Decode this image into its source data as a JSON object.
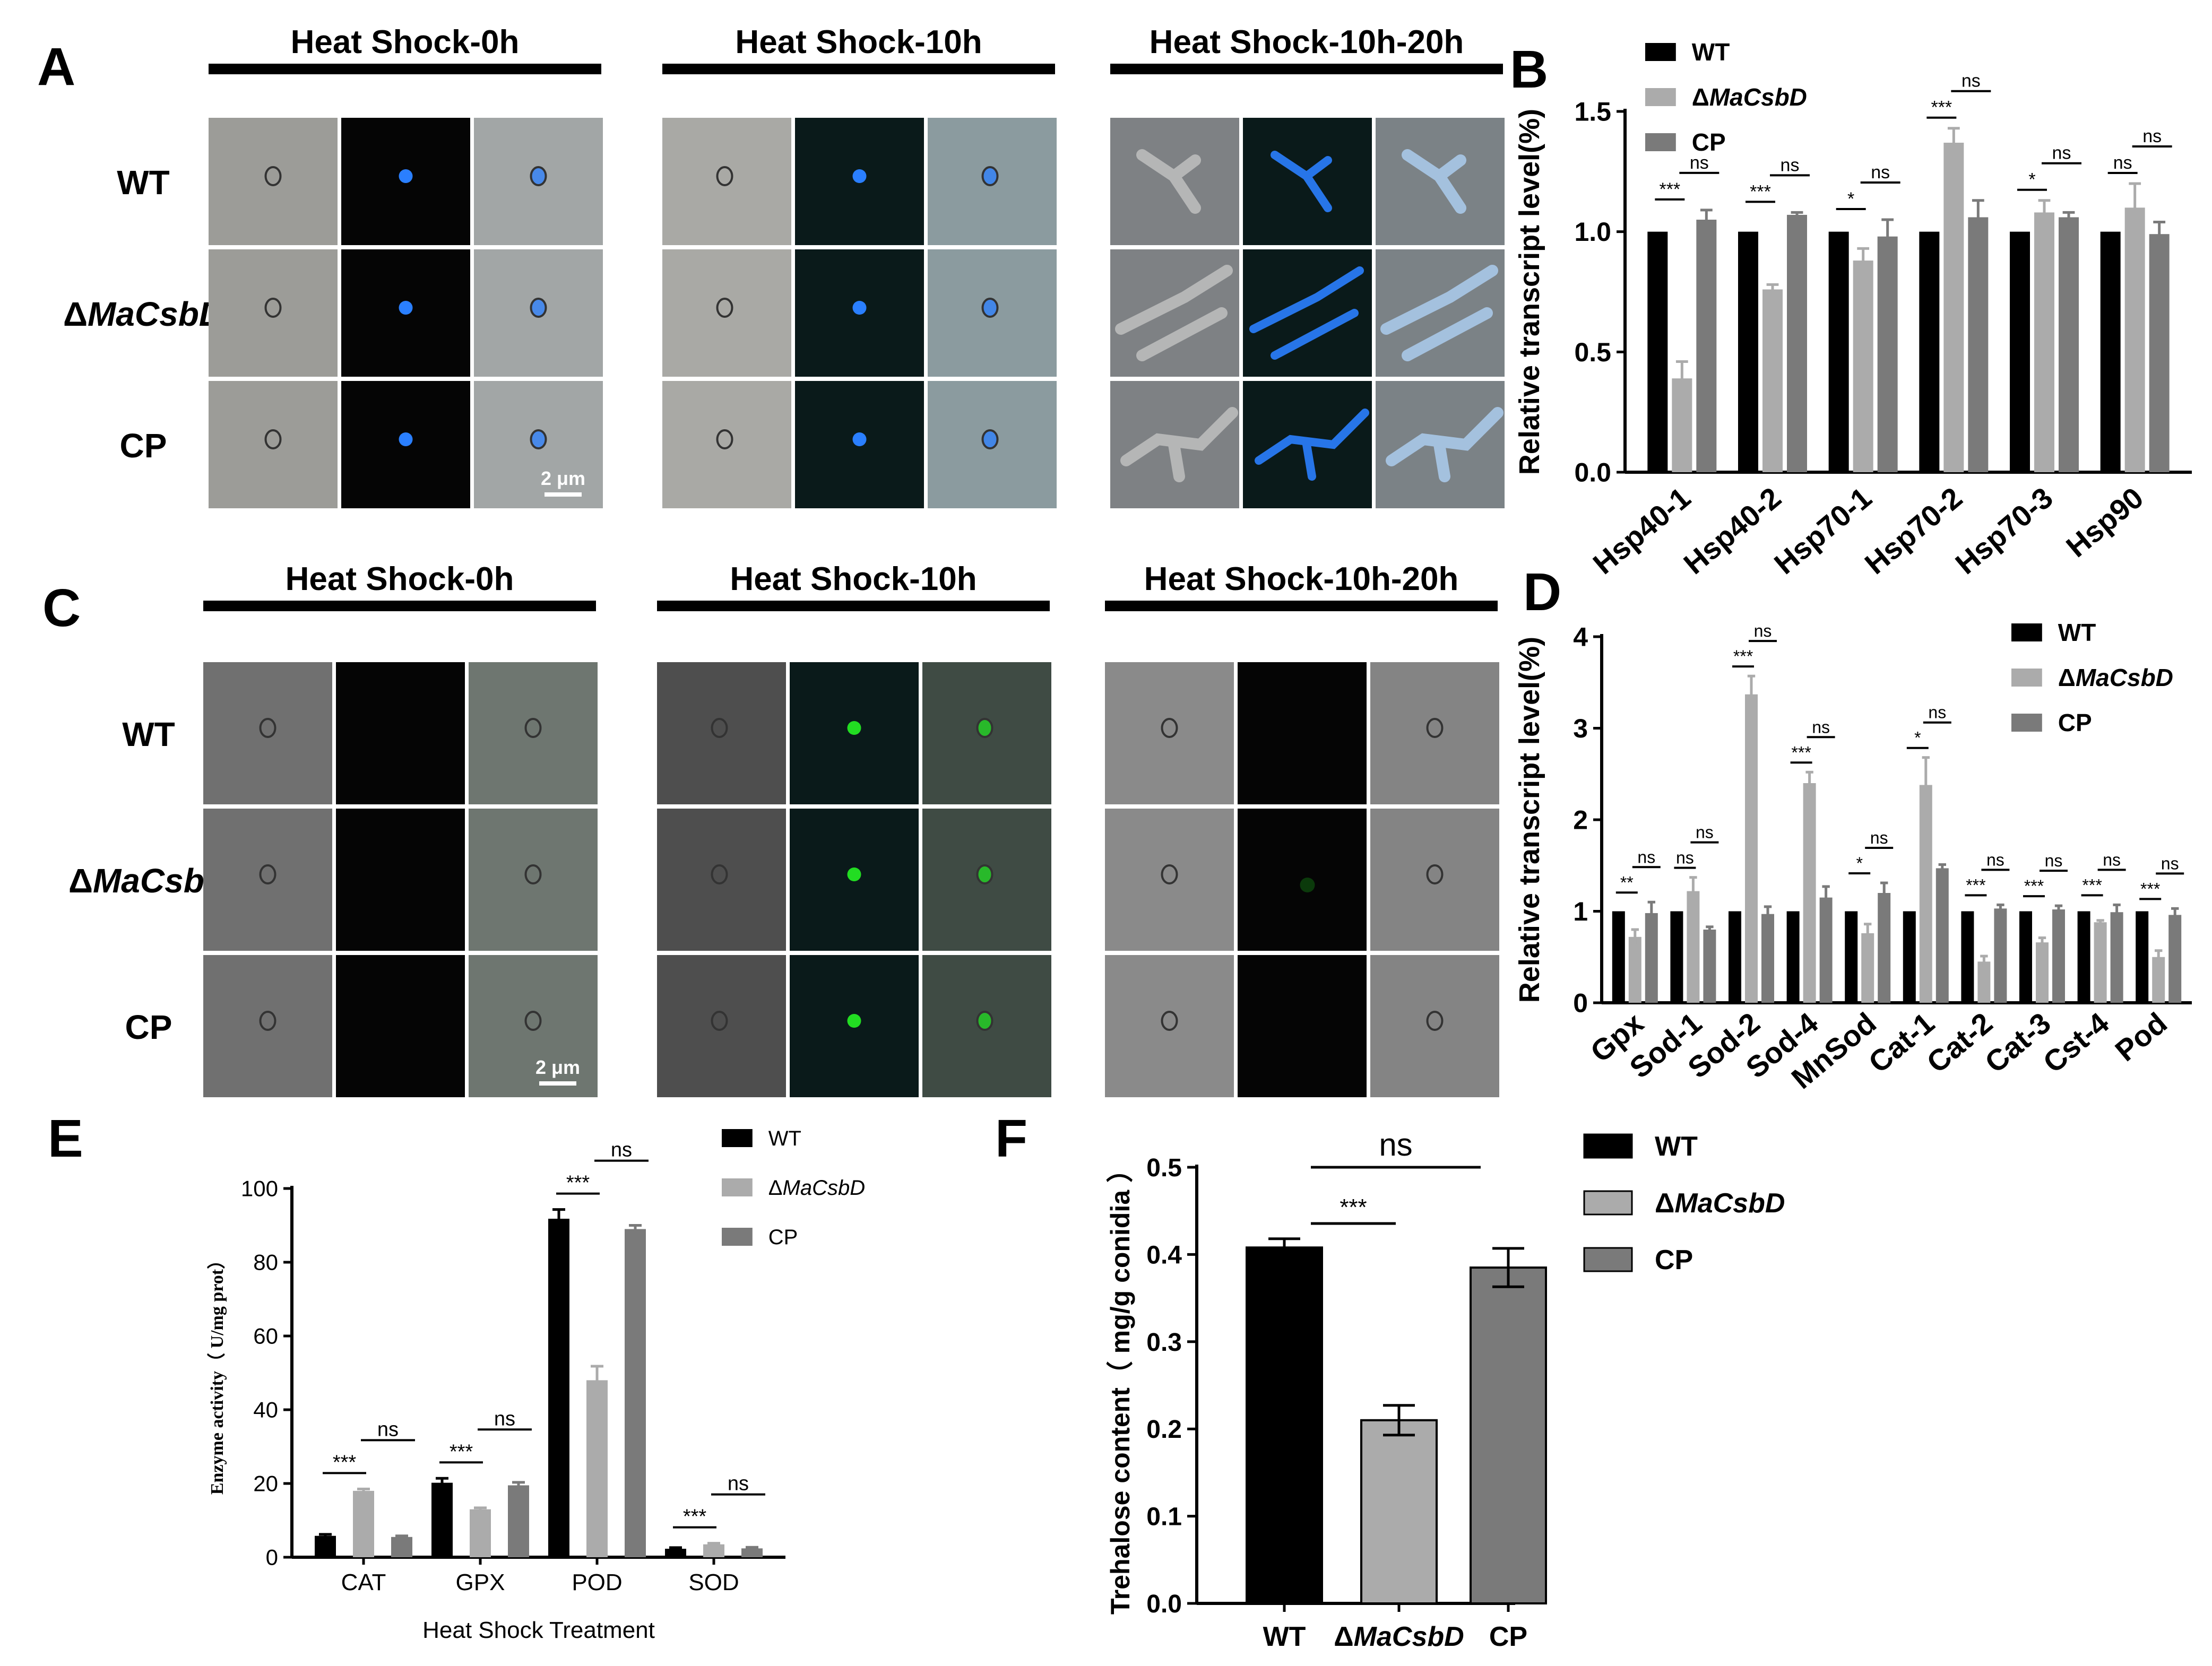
{
  "panel_letters": {
    "A": "A",
    "B": "B",
    "C": "C",
    "D": "D",
    "E": "E",
    "F": "F"
  },
  "micrographs": {
    "A": {
      "column_titles": [
        "Heat Shock-0h",
        "Heat Shock-10h",
        "Heat Shock-10h-20h"
      ],
      "row_labels": [
        "WT",
        "ΔMaCsbD",
        "CP"
      ],
      "scale_bar": "2 μm",
      "stain_color": "#2a7fff"
    },
    "C": {
      "column_titles": [
        "Heat Shock-0h",
        "Heat Shock-10h",
        "Heat Shock-10h-20h"
      ],
      "row_labels": [
        "WT",
        "ΔMaCsbD",
        "CP"
      ],
      "scale_bar": "2 μm",
      "stain_color": "#22dd22"
    }
  },
  "colors": {
    "WT": "#000000",
    "mutant": "#ababab",
    "CP": "#7a7a7a"
  },
  "chart_data": [
    {
      "panel": "B",
      "type": "bar",
      "ylabel": "Relative transcript level(%)",
      "ylim": [
        0,
        1.5
      ],
      "yticks": [
        "0.0",
        "0.5",
        "1.0",
        "1.5"
      ],
      "categories": [
        "Hsp40-1",
        "Hsp40-2",
        "Hsp70-1",
        "Hsp70-2",
        "Hsp70-3",
        "Hsp90"
      ],
      "series": [
        {
          "name": "WT",
          "values": [
            1.0,
            1.0,
            1.0,
            1.0,
            1.0,
            1.0
          ],
          "errors": [
            0,
            0,
            0,
            0,
            0,
            0
          ]
        },
        {
          "name": "ΔMaCsbD",
          "values": [
            0.39,
            0.76,
            0.88,
            1.37,
            1.08,
            1.1
          ],
          "errors": [
            0.07,
            0.02,
            0.05,
            0.06,
            0.05,
            0.1
          ]
        },
        {
          "name": "CP",
          "values": [
            1.05,
            1.07,
            0.98,
            1.06,
            1.06,
            0.99
          ],
          "errors": [
            0.04,
            0.01,
            0.07,
            0.07,
            0.02,
            0.05
          ]
        }
      ],
      "annotations": [
        {
          "category": 0,
          "lower": "***",
          "upper": "ns"
        },
        {
          "category": 1,
          "lower": "***",
          "upper": "ns"
        },
        {
          "category": 2,
          "lower": "*",
          "upper": "ns"
        },
        {
          "category": 3,
          "lower": "***",
          "upper": "ns"
        },
        {
          "category": 4,
          "lower": "*",
          "upper": "ns"
        },
        {
          "category": 5,
          "lower": "ns",
          "upper": "ns"
        }
      ],
      "legend": "top"
    },
    {
      "panel": "D",
      "type": "bar",
      "ylabel": "Relative transcript level(%)",
      "ylim": [
        0,
        4
      ],
      "yticks": [
        "0",
        "1",
        "2",
        "3",
        "4"
      ],
      "categories": [
        "Gpx",
        "Sod-1",
        "Sod-2",
        "Sod-4",
        "MnSod",
        "Cat-1",
        "Cat-2",
        "Cat-3",
        "Cst-4",
        "Pod"
      ],
      "series": [
        {
          "name": "WT",
          "values": [
            1,
            1,
            1,
            1,
            1,
            1,
            1,
            1,
            1,
            1
          ],
          "errors": [
            0,
            0,
            0,
            0,
            0,
            0,
            0,
            0,
            0,
            0
          ]
        },
        {
          "name": "ΔMaCsbD",
          "values": [
            0.72,
            1.22,
            3.37,
            2.4,
            0.76,
            2.38,
            0.45,
            0.66,
            0.88,
            0.5
          ],
          "errors": [
            0.08,
            0.15,
            0.2,
            0.12,
            0.1,
            0.3,
            0.06,
            0.05,
            0.02,
            0.07
          ]
        },
        {
          "name": "CP",
          "values": [
            0.98,
            0.8,
            0.97,
            1.15,
            1.2,
            1.47,
            1.03,
            1.02,
            0.99,
            0.96
          ],
          "errors": [
            0.12,
            0.03,
            0.08,
            0.12,
            0.11,
            0.04,
            0.04,
            0.04,
            0.08,
            0.07
          ]
        }
      ],
      "annotations": [
        {
          "category": 0,
          "lower": "**",
          "upper": "ns"
        },
        {
          "category": 1,
          "lower": "ns",
          "upper": "ns"
        },
        {
          "category": 2,
          "lower": "***",
          "upper": "ns"
        },
        {
          "category": 3,
          "lower": "***",
          "upper": "ns"
        },
        {
          "category": 4,
          "lower": "*",
          "upper": "ns"
        },
        {
          "category": 5,
          "lower": "*",
          "upper": "ns"
        },
        {
          "category": 6,
          "lower": "***",
          "upper": "ns"
        },
        {
          "category": 7,
          "lower": "***",
          "upper": "ns"
        },
        {
          "category": 8,
          "lower": "***",
          "upper": "ns"
        },
        {
          "category": 9,
          "lower": "***",
          "upper": "ns"
        }
      ],
      "legend": "top-right"
    },
    {
      "panel": "E",
      "type": "bar",
      "xlabel": "Heat Shock Treatment",
      "ylabel": "Enzyme activity（ U/mg prot）",
      "ylim": [
        0,
        100
      ],
      "yticks": [
        "0",
        "20",
        "40",
        "60",
        "80",
        "100"
      ],
      "categories": [
        "CAT",
        "GPX",
        "POD",
        "SOD"
      ],
      "series": [
        {
          "name": "WT",
          "values": [
            5.8,
            20.2,
            91.8,
            2.3
          ],
          "errors": [
            0.4,
            1.2,
            2.5,
            0.3
          ]
        },
        {
          "name": "ΔMaCsbD",
          "values": [
            18.0,
            13.0,
            48.0,
            3.5
          ],
          "errors": [
            0.5,
            0.4,
            3.8,
            0.3
          ]
        },
        {
          "name": "CP",
          "values": [
            5.5,
            19.5,
            89.0,
            2.4
          ],
          "errors": [
            0.3,
            0.8,
            1.0,
            0.3
          ]
        }
      ],
      "annotations": [
        {
          "category": 0,
          "lower": "***",
          "upper": "ns"
        },
        {
          "category": 1,
          "lower": "***",
          "upper": "ns"
        },
        {
          "category": 2,
          "lower": "***",
          "upper": "ns"
        },
        {
          "category": 3,
          "lower": "***",
          "upper": "ns"
        }
      ],
      "legend": "top-right"
    },
    {
      "panel": "F",
      "type": "bar",
      "ylabel": "Trehalose content（ mg/g conidia ）",
      "ylim": [
        0,
        0.5
      ],
      "yticks": [
        "0.0",
        "0.1",
        "0.2",
        "0.3",
        "0.4",
        "0.5"
      ],
      "categories": [
        "WT",
        "ΔMaCsbD",
        "CP"
      ],
      "values": [
        0.408,
        0.21,
        0.385
      ],
      "errors": [
        0.01,
        0.017,
        0.022
      ],
      "series_names": [
        "WT",
        "ΔMaCsbD",
        "CP"
      ],
      "annotations": [
        {
          "lower": "***",
          "upper": "ns"
        }
      ],
      "legend": "right"
    }
  ]
}
